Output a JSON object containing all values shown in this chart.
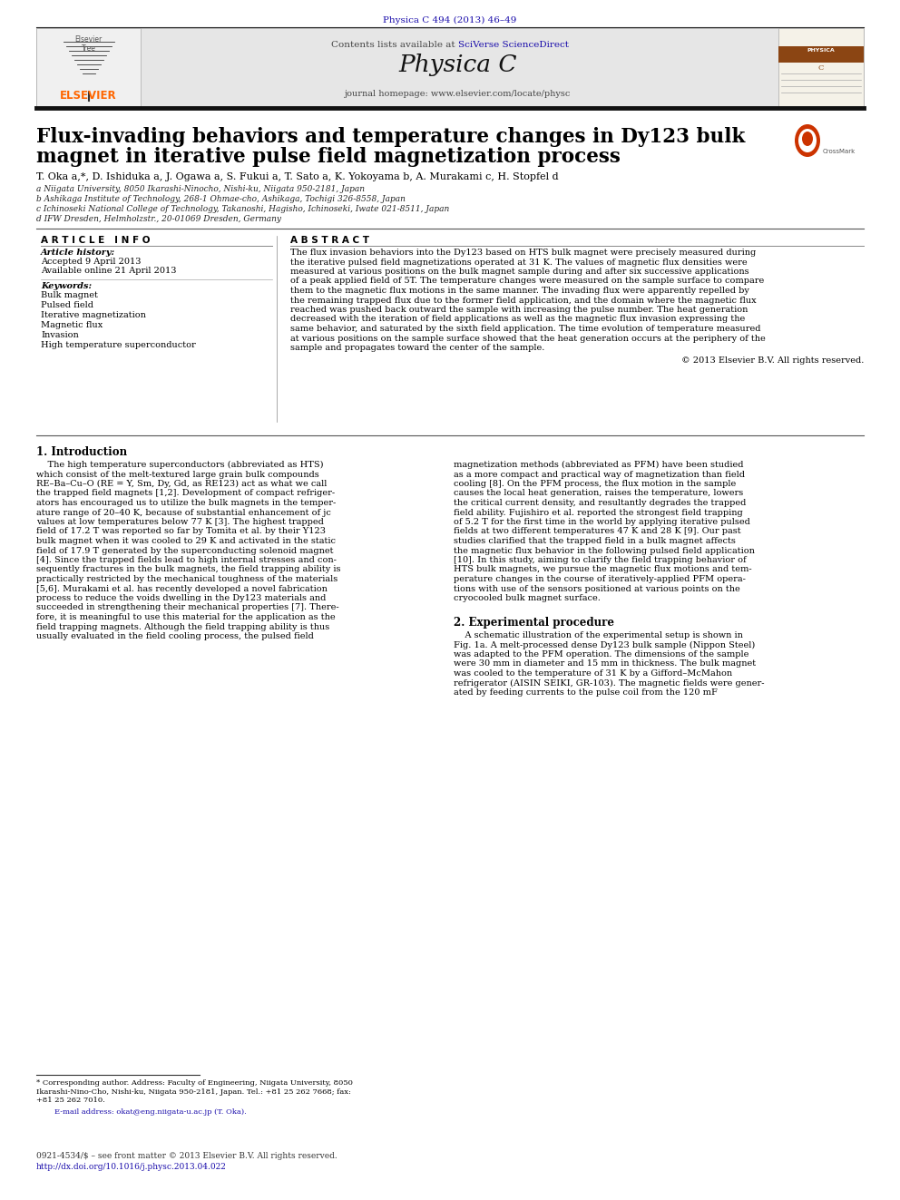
{
  "page_width": 9.92,
  "page_height": 13.23,
  "dpi": 100,
  "background_color": "#ffffff",
  "journal_ref": "Physica C 494 (2013) 46–49",
  "journal_ref_color": "#1a0dab",
  "header_contents_plain": "Contents lists available at ",
  "header_contents_link": "SciVerse ScienceDirect",
  "journal_name": "Physica C",
  "journal_homepage": "journal homepage: www.elsevier.com/locate/physc",
  "title_line1": "Flux-invading behaviors and temperature changes in Dy123 bulk",
  "title_line2": "magnet in iterative pulse field magnetization process",
  "authors": "T. Oka",
  "authors_super": "a,*",
  "authors_rest": ", D. Ishiduka",
  "affiliations": [
    "a Niigata University, 8050 Ikarashi-Ninocho, Nishi-ku, Niigata 950-2181, Japan",
    "b Ashikaga Institute of Technology, 268-1 Ohmae-cho, Ashikaga, Tochigi 326-8558, Japan",
    "c Ichinoseki National College of Technology, Takanoshi, Hagisho, Ichinoseki, Iwate 021-8511, Japan",
    "d IFW Dresden, Helmholzstr., 20-01069 Dresden, Germany"
  ],
  "authors_full": "T. Oka a,*, D. Ishiduka a, J. Ogawa a, S. Fukui a, T. Sato a, K. Yokoyama b, A. Murakami c, H. Stopfel d",
  "article_info_title": "A R T I C L E   I N F O",
  "article_history_title": "Article history:",
  "article_history_line1": "Accepted 9 April 2013",
  "article_history_line2": "Available online 21 April 2013",
  "keywords_title": "Keywords:",
  "keywords": [
    "Bulk magnet",
    "Pulsed field",
    "Iterative magnetization",
    "Magnetic flux",
    "Invasion",
    "High temperature superconductor"
  ],
  "abstract_title": "A B S T R A C T",
  "abstract_lines": [
    "The flux invasion behaviors into the Dy123 based on HTS bulk magnet were precisely measured during",
    "the iterative pulsed field magnetizations operated at 31 K. The values of magnetic flux densities were",
    "measured at various positions on the bulk magnet sample during and after six successive applications",
    "of a peak applied field of 5T. The temperature changes were measured on the sample surface to compare",
    "them to the magnetic flux motions in the same manner. The invading flux were apparently repelled by",
    "the remaining trapped flux due to the former field application, and the domain where the magnetic flux",
    "reached was pushed back outward the sample with increasing the pulse number. The heat generation",
    "decreased with the iteration of field applications as well as the magnetic flux invasion expressing the",
    "same behavior, and saturated by the sixth field application. The time evolution of temperature measured",
    "at various positions on the sample surface showed that the heat generation occurs at the periphery of the",
    "sample and propagates toward the center of the sample."
  ],
  "copyright": "© 2013 Elsevier B.V. All rights reserved.",
  "section1_title": "1. Introduction",
  "col1_lines": [
    "    The high temperature superconductors (abbreviated as HTS)",
    "which consist of the melt-textured large grain bulk compounds",
    "RE–Ba–Cu–O (RE = Y, Sm, Dy, Gd, as RE123) act as what we call",
    "the trapped field magnets [1,2]. Development of compact refriger-",
    "ators has encouraged us to utilize the bulk magnets in the temper-",
    "ature range of 20–40 K, because of substantial enhancement of jc",
    "values at low temperatures below 77 K [3]. The highest trapped",
    "field of 17.2 T was reported so far by Tomita et al. by their Y123",
    "bulk magnet when it was cooled to 29 K and activated in the static",
    "field of 17.9 T generated by the superconducting solenoid magnet",
    "[4]. Since the trapped fields lead to high internal stresses and con-",
    "sequently fractures in the bulk magnets, the field trapping ability is",
    "practically restricted by the mechanical toughness of the materials",
    "[5,6]. Murakami et al. has recently developed a novel fabrication",
    "process to reduce the voids dwelling in the Dy123 materials and",
    "succeeded in strengthening their mechanical properties [7]. There-",
    "fore, it is meaningful to use this material for the application as the",
    "field trapping magnets. Although the field trapping ability is thus",
    "usually evaluated in the field cooling process, the pulsed field"
  ],
  "col2_lines": [
    "magnetization methods (abbreviated as PFM) have been studied",
    "as a more compact and practical way of magnetization than field",
    "cooling [8]. On the PFM process, the flux motion in the sample",
    "causes the local heat generation, raises the temperature, lowers",
    "the critical current density, and resultantly degrades the trapped",
    "field ability. Fujishiro et al. reported the strongest field trapping",
    "of 5.2 T for the first time in the world by applying iterative pulsed",
    "fields at two different temperatures 47 K and 28 K [9]. Our past",
    "studies clarified that the trapped field in a bulk magnet affects",
    "the magnetic flux behavior in the following pulsed field application",
    "[10]. In this study, aiming to clarify the field trapping behavior of",
    "HTS bulk magnets, we pursue the magnetic flux motions and tem-",
    "perature changes in the course of iteratively-applied PFM opera-",
    "tions with use of the sensors positioned at various points on the",
    "cryocooled bulk magnet surface."
  ],
  "section2_title": "2. Experimental procedure",
  "sec2_lines": [
    "    A schematic illustration of the experimental setup is shown in",
    "Fig. 1a. A melt-processed dense Dy123 bulk sample (Nippon Steel)",
    "was adapted to the PFM operation. The dimensions of the sample",
    "were 30 mm in diameter and 15 mm in thickness. The bulk magnet",
    "was cooled to the temperature of 31 K by a Gifford–McMahon",
    "refrigerator (AISIN SEIKI, GR-103). The magnetic fields were gener-",
    "ated by feeding currents to the pulse coil from the 120 mF"
  ],
  "footnote_lines": [
    "* Corresponding author. Address: Faculty of Engineering, Niigata University, 8050",
    "Ikarashi-Nino-Cho, Nishi-ku, Niigata 950-2181, Japan. Tel.: +81 25 262 7668; fax:",
    "+81 25 262 7010."
  ],
  "footnote_email": "E-mail address: okat@eng.niigata-u.ac.jp (T. Oka).",
  "footer_issn": "0921-4534/$ – see front matter © 2013 Elsevier B.V. All rights reserved.",
  "footer_doi": "http://dx.doi.org/10.1016/j.physc.2013.04.022",
  "elsevier_color": "#ff6600",
  "link_color": "#1a0dab",
  "header_bg": "#e6e6e6"
}
